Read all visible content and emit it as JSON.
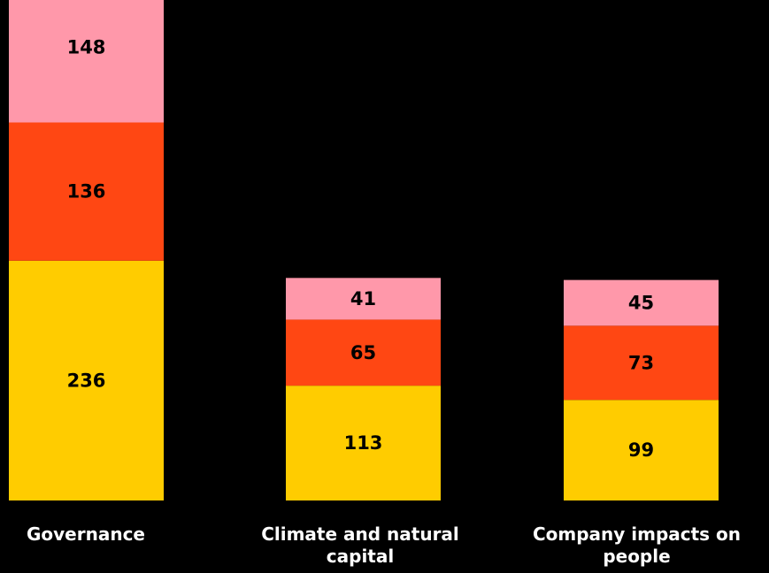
{
  "chart_data": {
    "type": "bar",
    "stacked": true,
    "categories": [
      "Governance",
      "Climate and natural capital",
      "Company impacts on people"
    ],
    "series": [
      {
        "values": [
          236,
          113,
          99
        ],
        "color": "#FFCC00"
      },
      {
        "values": [
          136,
          65,
          73
        ],
        "color": "#FF4713"
      },
      {
        "values": [
          148,
          41,
          45
        ],
        "color": "#FF98AA"
      }
    ],
    "ylim": [
      0,
      520
    ],
    "grid": false,
    "legend": "none",
    "title": "",
    "xlabel": "",
    "ylabel": ""
  },
  "colors": {
    "background": "#000000",
    "label_text": "#FFFFFF",
    "value_text": "#000000"
  }
}
